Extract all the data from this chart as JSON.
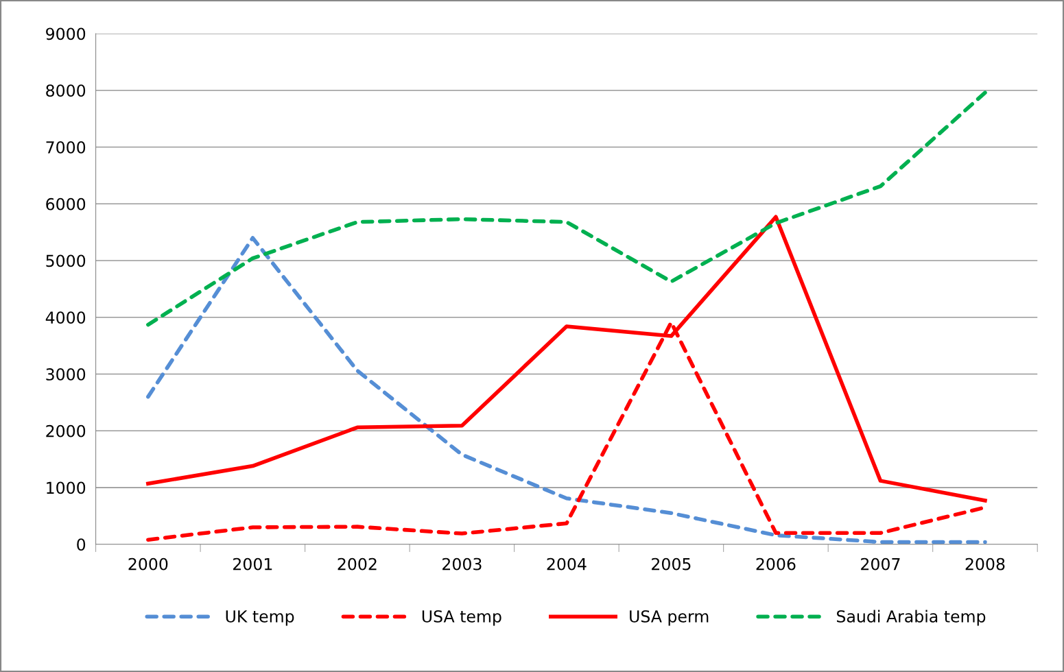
{
  "chart_data": {
    "type": "line",
    "categories": [
      "2000",
      "2001",
      "2002",
      "2003",
      "2004",
      "2005",
      "2006",
      "2007",
      "2008"
    ],
    "series": [
      {
        "name": "UK temp",
        "color": "#558ed5",
        "line_style": "dashed",
        "values": [
          2600,
          5400,
          3060,
          1580,
          810,
          550,
          160,
          40,
          40
        ]
      },
      {
        "name": "USA temp",
        "color": "#ff0000",
        "line_style": "dashed",
        "values": [
          80,
          300,
          310,
          190,
          370,
          3910,
          200,
          200,
          650
        ]
      },
      {
        "name": "USA perm",
        "color": "#ff0000",
        "line_style": "solid",
        "values": [
          1070,
          1380,
          2060,
          2090,
          3840,
          3670,
          5770,
          1120,
          770
        ]
      },
      {
        "name": "Saudi Arabia temp",
        "color": "#00b050",
        "line_style": "dashed",
        "values": [
          3870,
          5040,
          5680,
          5730,
          5680,
          4630,
          5660,
          6310,
          7960
        ]
      }
    ],
    "ylim": [
      0,
      9000
    ],
    "yticks": [
      0,
      1000,
      2000,
      3000,
      4000,
      5000,
      6000,
      7000,
      8000,
      9000
    ],
    "grid": "y",
    "legend": "bottom",
    "marker": "none"
  }
}
